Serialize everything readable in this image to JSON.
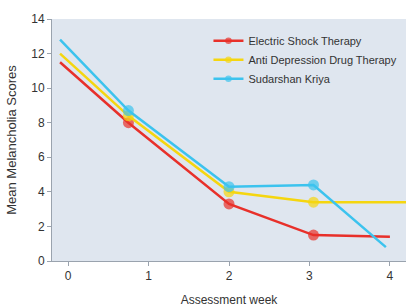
{
  "chart_data": {
    "type": "line",
    "x_label": "Assessment week",
    "y_label": "Mean Melancholia Scores",
    "series": [
      {
        "name": "Electric Shock Therapy",
        "color": "#e8302a",
        "marker": "circle",
        "x": [
          -0.1,
          0.75,
          2,
          3.05,
          4
        ],
        "values": [
          11.5,
          8,
          3.3,
          1.5,
          1.4
        ]
      },
      {
        "name": "Anti Depression Drug Therapy",
        "color": "#f5d60f",
        "marker": "circle",
        "x": [
          -0.1,
          0.75,
          2,
          3.05,
          4.2
        ],
        "values": [
          12,
          8.4,
          4,
          3.4,
          3.4
        ]
      },
      {
        "name": "Sudarshan Kriya",
        "color": "#3cc3ee",
        "marker": "circle",
        "x": [
          -0.1,
          0.75,
          2,
          3.05,
          3.95
        ],
        "values": [
          12.8,
          8.7,
          4.3,
          4.4,
          0.8
        ]
      }
    ],
    "xlim": [
      -0.2,
      4.2
    ],
    "xticks": [
      0,
      1,
      2,
      3,
      4
    ],
    "ylim": [
      0,
      14
    ],
    "yticks": [
      0,
      2,
      4,
      6,
      8,
      10,
      12,
      14
    ],
    "grid": false,
    "legend": "upper right"
  }
}
